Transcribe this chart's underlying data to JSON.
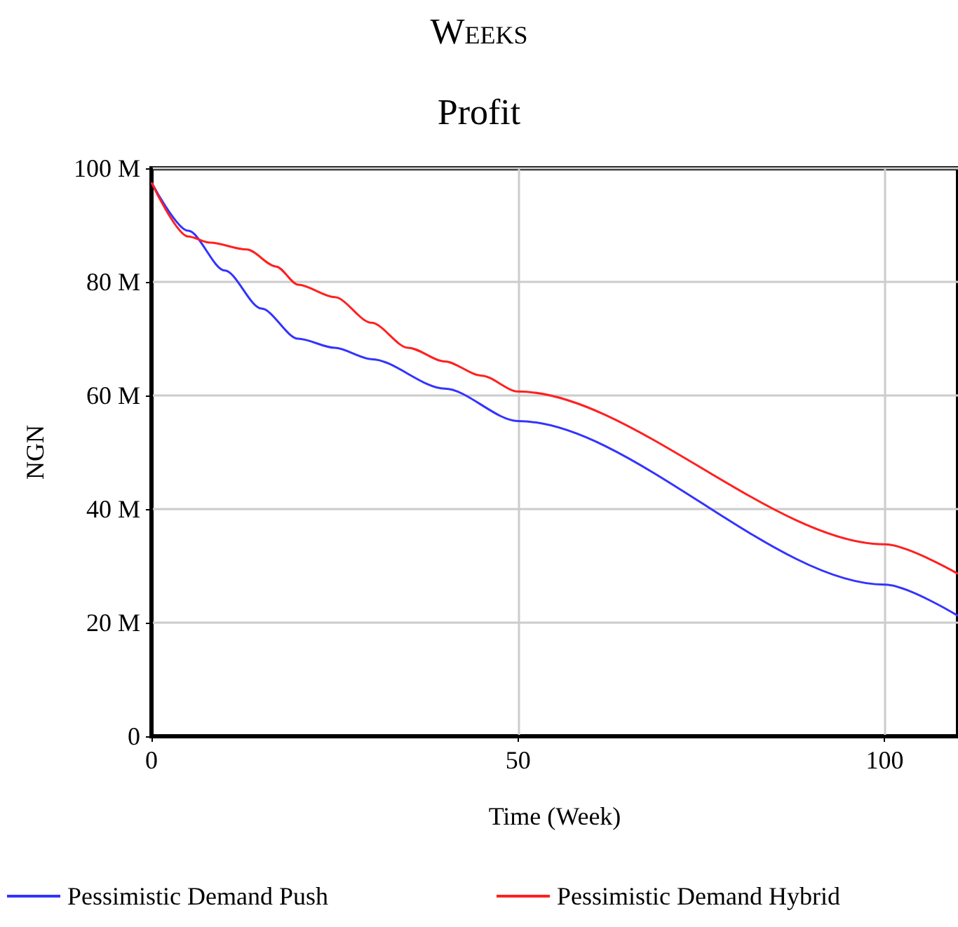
{
  "chart_data": {
    "type": "line",
    "subtitle": "Weeks",
    "title": "Profit",
    "xlabel": "Time (Week)",
    "ylabel": "NGN",
    "xlim": [
      0,
      110
    ],
    "xticks": [
      0,
      50,
      100
    ],
    "ylim": [
      0,
      100000000
    ],
    "yticks": [
      {
        "value": 0,
        "label": "0"
      },
      {
        "value": 20000000,
        "label": "20 M"
      },
      {
        "value": 40000000,
        "label": "40 M"
      },
      {
        "value": 60000000,
        "label": "60 M"
      },
      {
        "value": 80000000,
        "label": "80 M"
      },
      {
        "value": 100000000,
        "label": "100 M"
      }
    ],
    "grid": true,
    "legend": "bottom",
    "marker": "none",
    "line_style": "solid",
    "series": [
      {
        "name": "Pessimistic Demand Push",
        "color": "#3333ff",
        "x": [
          0,
          5,
          10,
          15,
          20,
          25,
          30,
          40,
          50,
          100,
          110
        ],
        "values": [
          97500000,
          89000000,
          82000000,
          75300000,
          70000000,
          68400000,
          66400000,
          61200000,
          55500000,
          26700000,
          21200000
        ]
      },
      {
        "name": "Pessimistic Demand Hybrid",
        "color": "#ff2020",
        "x": [
          0,
          5,
          8,
          13,
          17,
          20,
          25,
          30,
          35,
          40,
          45,
          50,
          100,
          110
        ],
        "values": [
          97500000,
          88000000,
          86900000,
          85700000,
          82700000,
          79500000,
          77300000,
          72800000,
          68400000,
          66000000,
          63500000,
          60700000,
          33800000,
          28600000
        ]
      }
    ]
  }
}
